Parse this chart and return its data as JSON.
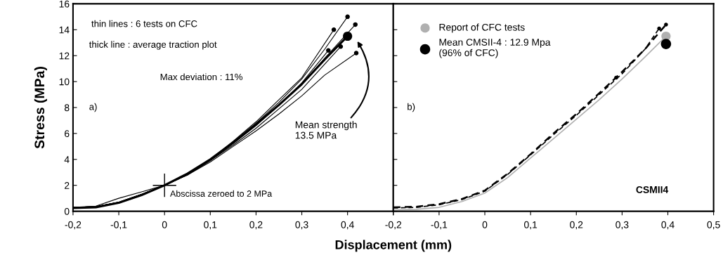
{
  "chart_data": [
    {
      "type": "line",
      "ylabel": "Stress (MPa)",
      "xlabel": "Displacement (mm)",
      "xlim": [
        -0.2,
        0.5
      ],
      "ylim": [
        0,
        16
      ],
      "xticks": [
        {
          "value": -0.2,
          "label": "-0,2"
        },
        {
          "value": -0.1,
          "label": "-0,1"
        },
        0,
        {
          "value": 0.1,
          "label": "0,1"
        },
        {
          "value": 0.2,
          "label": "0,2"
        },
        {
          "value": 0.3,
          "label": "0,3"
        },
        {
          "value": 0.4,
          "label": "0,4"
        },
        {
          "value": 0.5,
          "label": null
        }
      ],
      "yticks": [
        0,
        2,
        4,
        6,
        8,
        10,
        12,
        14,
        16
      ],
      "grid": false,
      "legend": false,
      "series": [
        {
          "color": "#000000",
          "x": [
            -0.2,
            -0.15,
            -0.1,
            -0.05,
            0,
            0.05,
            0.1,
            0.15,
            0.2,
            0.25,
            0.3,
            0.35,
            0.4
          ],
          "values": [
            0.3,
            0.35,
            0.7,
            1.3,
            2.0,
            2.9,
            4.0,
            5.3,
            6.8,
            8.4,
            10.2,
            12.5,
            15.0
          ]
        },
        {
          "color": "#000000",
          "x": [
            -0.2,
            -0.15,
            -0.1,
            -0.05,
            0,
            0.05,
            0.1,
            0.15,
            0.2,
            0.25,
            0.3,
            0.37
          ],
          "values": [
            0.3,
            0.35,
            0.7,
            1.3,
            2.0,
            2.9,
            4.0,
            5.4,
            6.9,
            8.6,
            10.3,
            14.0
          ]
        },
        {
          "color": "#000000",
          "x": [
            -0.2,
            -0.15,
            -0.1,
            -0.05,
            -0.02,
            0,
            0.05,
            0.1,
            0.15,
            0.2,
            0.25,
            0.3,
            0.35,
            0.417
          ],
          "values": [
            0.3,
            0.4,
            1.0,
            1.5,
            1.8,
            2.0,
            2.8,
            3.9,
            5.2,
            6.6,
            8.2,
            9.8,
            11.8,
            14.4
          ]
        },
        {
          "color": "#000000",
          "x": [
            -0.2,
            -0.15,
            -0.1,
            -0.05,
            0,
            0.05,
            0.1,
            0.15,
            0.2,
            0.25,
            0.3,
            0.385
          ],
          "values": [
            0.3,
            0.35,
            0.7,
            1.3,
            2.0,
            2.8,
            3.9,
            5.1,
            6.4,
            7.9,
            9.4,
            12.7
          ]
        },
        {
          "color": "#000000",
          "x": [
            -0.2,
            -0.15,
            -0.1,
            -0.05,
            0,
            0.05,
            0.1,
            0.15,
            0.2,
            0.25,
            0.3,
            0.358
          ],
          "values": [
            0.3,
            0.35,
            0.7,
            1.3,
            2.0,
            2.9,
            4.0,
            5.3,
            6.7,
            8.2,
            9.9,
            12.4
          ]
        },
        {
          "color": "#000000",
          "x": [
            -0.2,
            -0.15,
            -0.1,
            -0.05,
            0,
            0.05,
            0.1,
            0.15,
            0.2,
            0.25,
            0.3,
            0.35,
            0.419
          ],
          "values": [
            0.3,
            0.35,
            0.7,
            1.3,
            2.0,
            2.8,
            3.8,
            5.0,
            6.2,
            7.5,
            8.9,
            10.5,
            12.2
          ]
        },
        {
          "color": "#000000",
          "x": [
            -0.2,
            -0.15,
            -0.1,
            -0.05,
            0,
            0.05,
            0.1,
            0.15,
            0.2,
            0.25,
            0.3,
            0.35,
            0.4
          ],
          "values": [
            0.25,
            0.3,
            0.65,
            1.25,
            2.0,
            2.9,
            4.0,
            5.3,
            6.7,
            8.2,
            9.8,
            11.7,
            13.5
          ]
        },
        {
          "type": "scatter",
          "color": "#000000",
          "x": [
            0.4,
            0.37,
            0.417,
            0.385,
            0.358,
            0.419
          ],
          "values": [
            15.0,
            14.0,
            14.4,
            12.7,
            12.4,
            12.2
          ]
        },
        {
          "type": "scatter",
          "color": "#000000",
          "x": [
            0.4
          ],
          "values": [
            13.5
          ]
        }
      ],
      "annotations": [
        "thin lines : 6 tests on CFC",
        "thick line : average traction plot",
        "Max deviation : 11%",
        "a)",
        {
          "text": "Abscissa zeroed to 2 MPa",
          "x": 0,
          "y": 2
        },
        "Mean strength\n13.5 MPa"
      ]
    },
    {
      "type": "line",
      "xlim": [
        -0.2,
        0.5
      ],
      "ylim": [
        0,
        16
      ],
      "xticks": [
        {
          "value": -0.2,
          "label": "-0,2"
        },
        {
          "value": -0.1,
          "label": "-0,1"
        },
        0,
        {
          "value": 0.1,
          "label": "0,1"
        },
        {
          "value": 0.2,
          "label": "0,2"
        },
        {
          "value": 0.3,
          "label": "0,3"
        },
        {
          "value": 0.4,
          "label": "0,4"
        },
        {
          "value": 0.5,
          "label": "0,5"
        }
      ],
      "yticks": [
        0,
        2,
        4,
        6,
        8,
        10,
        12,
        14,
        16
      ],
      "tick_labels": "x",
      "grid": false,
      "legend": "top left",
      "series": [
        {
          "color": "#b0b0b0",
          "x": [
            -0.2,
            -0.15,
            -0.1,
            -0.05,
            0,
            0.05,
            0.1,
            0.15,
            0.2,
            0.25,
            0.3,
            0.35,
            0.396
          ],
          "values": [
            0.1,
            0.15,
            0.3,
            0.75,
            1.4,
            2.6,
            4.1,
            5.6,
            7.1,
            8.6,
            10.2,
            11.9,
            13.5
          ]
        },
        {
          "color": "#000000",
          "line_style": "dashed",
          "x": [
            -0.2,
            -0.15,
            -0.1,
            -0.05,
            0,
            0.05,
            0.1,
            0.15,
            0.2,
            0.25,
            0.3,
            0.35,
            0.396
          ],
          "values": [
            0.3,
            0.35,
            0.55,
            0.95,
            1.6,
            2.9,
            4.4,
            6.0,
            7.5,
            9.1,
            10.75,
            12.5,
            14.4
          ]
        },
        {
          "color": "#000000",
          "line_style": "dashed",
          "x": [
            -0.2,
            -0.15,
            -0.1,
            -0.05,
            0,
            0.05,
            0.1,
            0.15,
            0.2,
            0.25,
            0.3,
            0.35,
            0.381
          ],
          "values": [
            0.25,
            0.3,
            0.5,
            0.9,
            1.55,
            2.85,
            4.35,
            5.9,
            7.4,
            9.0,
            10.6,
            12.5,
            14.1
          ]
        },
        {
          "type": "scatter",
          "color": "#000000",
          "x": [
            0.396,
            0.381,
            0.287
          ],
          "values": [
            14.4,
            14.1,
            10.3
          ]
        },
        {
          "type": "scatter",
          "name": "Report of CFC tests",
          "color": "#b0b0b0",
          "x": [
            0.396
          ],
          "values": [
            13.5
          ]
        },
        {
          "type": "scatter",
          "name": "Mean CMSII-4 : 12.9 Mpa\n(96% of CFC)",
          "color": "#000000",
          "x": [
            0.396
          ],
          "values": [
            12.9
          ]
        }
      ],
      "annotations": [
        "b)",
        "CSMII4"
      ]
    }
  ]
}
